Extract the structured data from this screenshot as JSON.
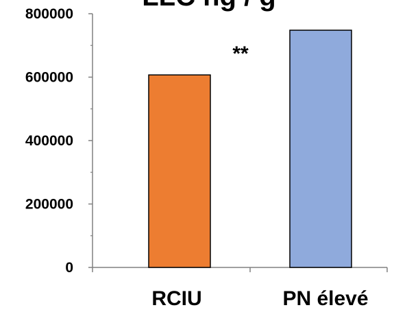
{
  "chart_data": {
    "type": "bar",
    "title": "LLC ng / g",
    "categories": [
      "RCIU",
      "PN élevé"
    ],
    "values": [
      607000,
      748000
    ],
    "colors": [
      "#ED7D31",
      "#8FAADC"
    ],
    "ylim": [
      0,
      800000
    ],
    "yticks": [
      "0",
      "200000",
      "400000",
      "600000",
      "800000"
    ],
    "annotation": "**",
    "grid": false,
    "legend": "none",
    "xlabel": "",
    "ylabel": ""
  }
}
